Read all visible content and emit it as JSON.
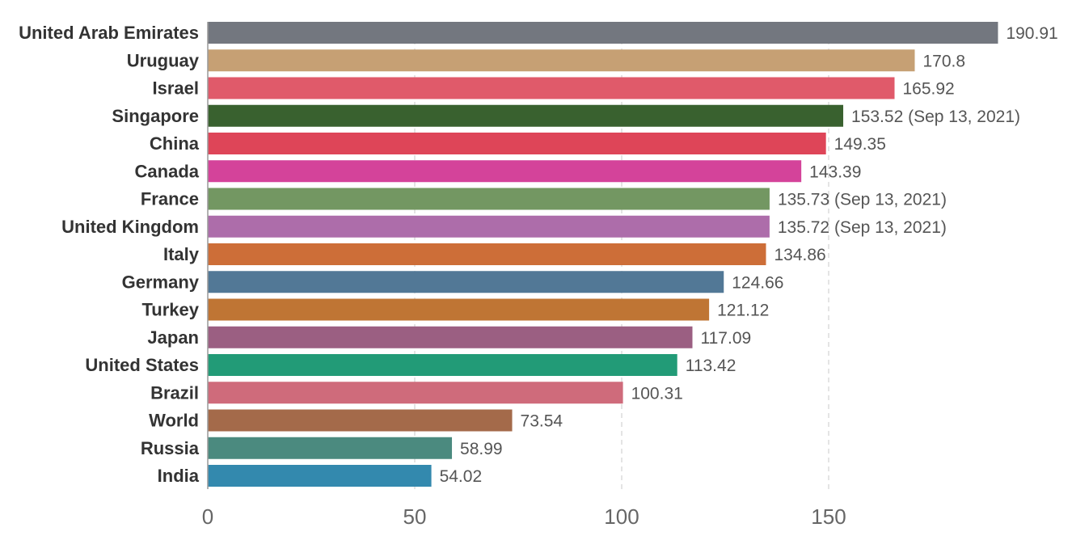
{
  "chart_data": {
    "type": "bar",
    "orientation": "horizontal",
    "title": "",
    "xlabel": "",
    "ylabel": "",
    "xlim": [
      0,
      191
    ],
    "x_ticks": [
      0,
      50,
      100,
      150
    ],
    "grid": true,
    "categories": [
      "United Arab Emirates",
      "Uruguay",
      "Israel",
      "Singapore",
      "China",
      "Canada",
      "France",
      "United Kingdom",
      "Italy",
      "Germany",
      "Turkey",
      "Japan",
      "United States",
      "Brazil",
      "World",
      "Russia",
      "India"
    ],
    "values": [
      190.91,
      170.8,
      165.92,
      153.52,
      149.35,
      143.39,
      135.73,
      135.72,
      134.86,
      124.66,
      121.12,
      117.09,
      113.42,
      100.31,
      73.54,
      58.99,
      54.02
    ],
    "value_labels": [
      "190.91",
      "170.8",
      "165.92",
      "153.52 (Sep 13, 2021)",
      "149.35",
      "143.39",
      "135.73 (Sep 13, 2021)",
      "135.72 (Sep 13, 2021)",
      "134.86",
      "124.66",
      "121.12",
      "117.09",
      "113.42",
      "100.31",
      "73.54",
      "58.99",
      "54.02"
    ],
    "colors": [
      "#73777f",
      "#c6a074",
      "#e05a6a",
      "#39612f",
      "#de4558",
      "#d4439a",
      "#739762",
      "#ad6daa",
      "#cd6e38",
      "#527896",
      "#bf7534",
      "#9b5f82",
      "#229b77",
      "#cf6b7b",
      "#a46a4a",
      "#4b8a7f",
      "#3389ae"
    ]
  }
}
